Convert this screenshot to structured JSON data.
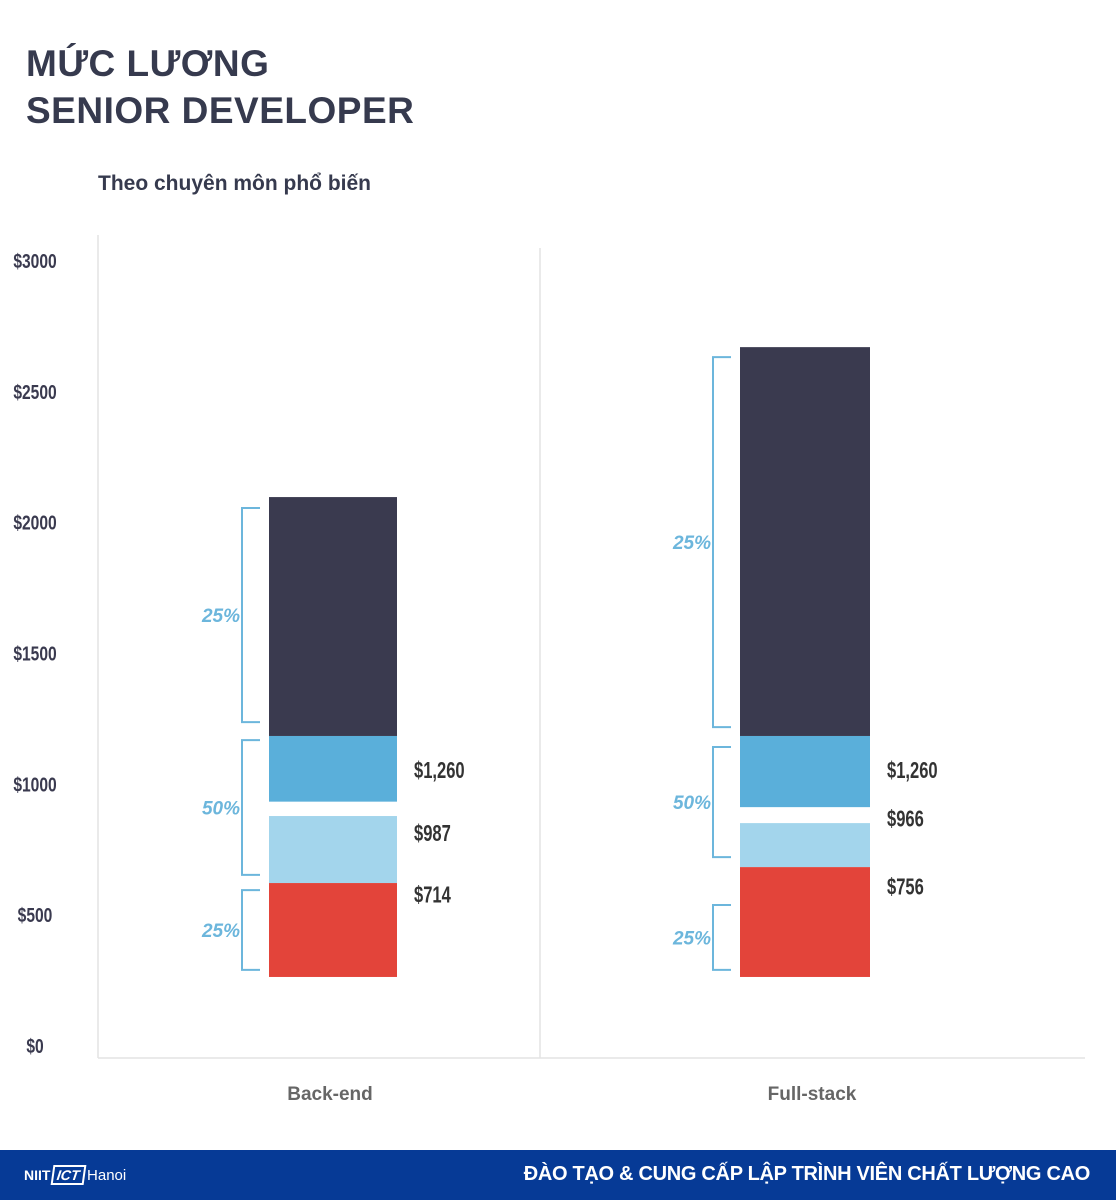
{
  "title_line1": "MỨC LƯƠNG",
  "title_line2": "SENIOR DEVELOPER",
  "subtitle": "Theo chuyên môn phổ biến",
  "footer": {
    "logo": "NIIT ICT Hanoi",
    "slogan": "ĐÀO TẠO & CUNG CẤP LẬP TRÌNH VIÊN CHẤT LƯỢNG CAO",
    "background": "#063a96"
  },
  "chart_data": {
    "type": "bar",
    "subtype": "floating-stacked-range",
    "ylim": [
      0,
      3000
    ],
    "yticks": [
      "$0",
      "$500",
      "$1000",
      "$1500",
      "$2000",
      "$2500",
      "$3000"
    ],
    "ytick_values": [
      0,
      500,
      1000,
      1500,
      2000,
      2500,
      3000
    ],
    "categories": [
      "Back-end",
      "Full-stack"
    ],
    "colors": {
      "top": "#3a3a4f",
      "mid": "#5aafda",
      "low_mid": "#a3d5ec",
      "bottom": "#e3443a",
      "bracket": "#6cb6dc",
      "value_label": "#333333"
    },
    "bars": [
      {
        "category": "Back-end",
        "segments": [
          {
            "name": "bottom",
            "from": 260,
            "to": 619
          },
          {
            "name": "low_mid",
            "from": 619,
            "to": 875
          },
          {
            "name": "mid",
            "from": 930,
            "to": 1181
          },
          {
            "name": "top",
            "from": 1181,
            "to": 2094
          }
        ],
        "value_labels": [
          {
            "text": "$1,260",
            "at": 1050
          },
          {
            "text": "$987",
            "at": 810
          },
          {
            "text": "$714",
            "at": 575
          }
        ],
        "brackets": [
          {
            "label": "25%",
            "from": 287,
            "to": 592
          },
          {
            "label": "50%",
            "from": 650,
            "to": 1165
          },
          {
            "label": "25%",
            "from": 1234,
            "to": 2052
          }
        ]
      },
      {
        "category": "Full-stack",
        "segments": [
          {
            "name": "bottom",
            "from": 260,
            "to": 680
          },
          {
            "name": "low_mid",
            "from": 680,
            "to": 848
          },
          {
            "name": "mid",
            "from": 909,
            "to": 1181
          },
          {
            "name": "top",
            "from": 1181,
            "to": 2667
          }
        ],
        "value_labels": [
          {
            "text": "$1,260",
            "at": 1050
          },
          {
            "text": "$966",
            "at": 866
          },
          {
            "text": "$756",
            "at": 605
          }
        ],
        "brackets": [
          {
            "label": "25%",
            "from": 287,
            "to": 535
          },
          {
            "label": "50%",
            "from": 718,
            "to": 1139
          },
          {
            "label": "25%",
            "from": 1215,
            "to": 2629
          }
        ]
      }
    ],
    "grid": false
  }
}
